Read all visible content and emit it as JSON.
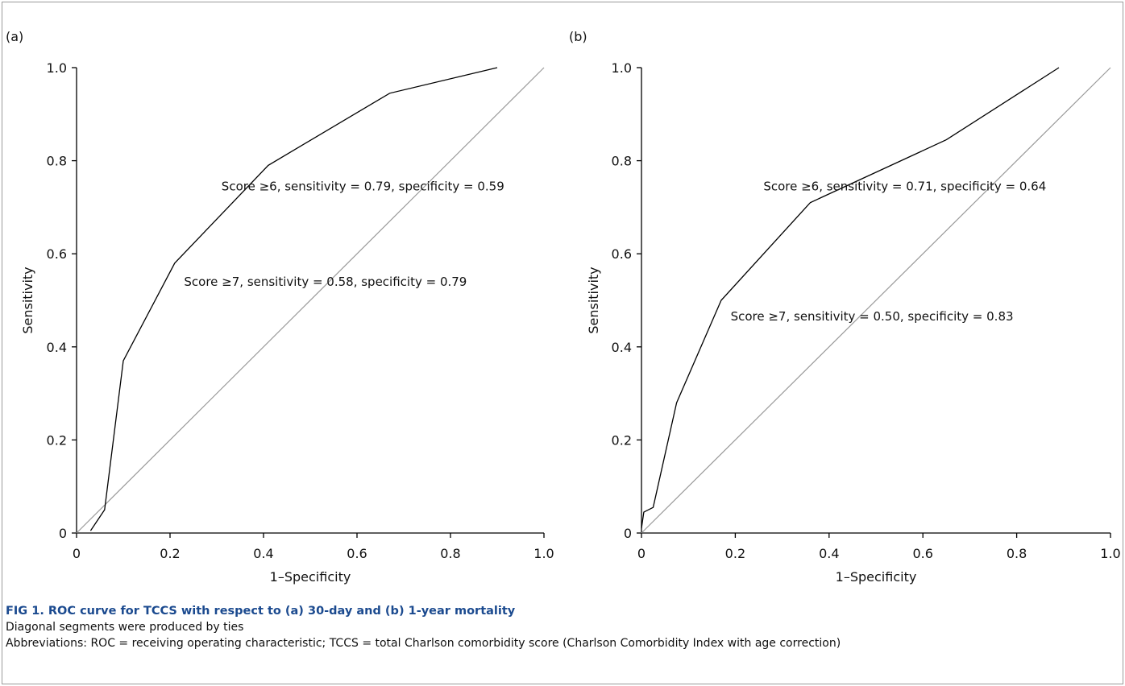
{
  "chart_data": [
    {
      "type": "line",
      "panel_label": "(a)",
      "xlabel": "1–Specificity",
      "ylabel": "Sensitivity",
      "xlim": [
        0,
        1.0
      ],
      "ylim": [
        0,
        1.0
      ],
      "xticks": [
        "0",
        "0.2",
        "0.4",
        "0.6",
        "0.8",
        "1.0"
      ],
      "yticks": [
        "0",
        "0.2",
        "0.4",
        "0.6",
        "0.8",
        "1.0"
      ],
      "reference_line": true,
      "series": [
        {
          "x": [
            0.03,
            0.06,
            0.1,
            0.21,
            0.41,
            0.67,
            0.9
          ],
          "y": [
            0.005,
            0.05,
            0.37,
            0.58,
            0.79,
            0.945,
            1.0
          ]
        }
      ],
      "annotations": [
        {
          "text": "Score ≥6, sensitivity = 0.79, specificity = 0.59",
          "x": 0.31,
          "y": 0.745
        },
        {
          "text": "Score ≥7, sensitivity = 0.58, specificity = 0.79",
          "x": 0.23,
          "y": 0.54
        }
      ]
    },
    {
      "type": "line",
      "panel_label": "(b)",
      "xlabel": "1–Specificity",
      "ylabel": "Sensitivity",
      "xlim": [
        0,
        1.0
      ],
      "ylim": [
        0,
        1.0
      ],
      "xticks": [
        "0",
        "0.2",
        "0.4",
        "0.6",
        "0.8",
        "1.0"
      ],
      "yticks": [
        "0",
        "0.2",
        "0.4",
        "0.6",
        "0.8",
        "1.0"
      ],
      "reference_line": true,
      "series": [
        {
          "x": [
            0.0,
            0.005,
            0.025,
            0.075,
            0.17,
            0.36,
            0.65,
            0.89
          ],
          "y": [
            0.01,
            0.045,
            0.055,
            0.28,
            0.5,
            0.71,
            0.845,
            1.0
          ]
        }
      ],
      "annotations": [
        {
          "text": "Score ≥6, sensitivity = 0.71, specificity = 0.64",
          "x": 0.26,
          "y": 0.745
        },
        {
          "text": "Score ≥7, sensitivity = 0.50, specificity = 0.83",
          "x": 0.19,
          "y": 0.465
        }
      ]
    }
  ],
  "caption": {
    "title": "FIG 1.  ROC curve for TCCS with respect to (a) 30-day and (b) 1-year mortality",
    "note": "Diagonal segments were produced by ties",
    "abbreviations": "Abbreviations: ROC = receiving operating characteristic; TCCS = total Charlson comorbidity score (Charlson Comorbidity Index with age correction)"
  }
}
